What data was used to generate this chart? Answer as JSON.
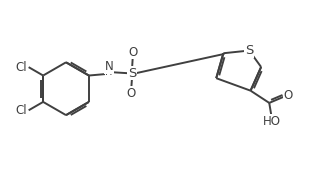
{
  "bg_color": "#ffffff",
  "line_color": "#404040",
  "line_width": 1.4,
  "font_size": 8.5,
  "figsize": [
    3.22,
    1.71
  ],
  "dpi": 100,
  "xlim": [
    0,
    10
  ],
  "ylim": [
    0,
    5.3
  ]
}
